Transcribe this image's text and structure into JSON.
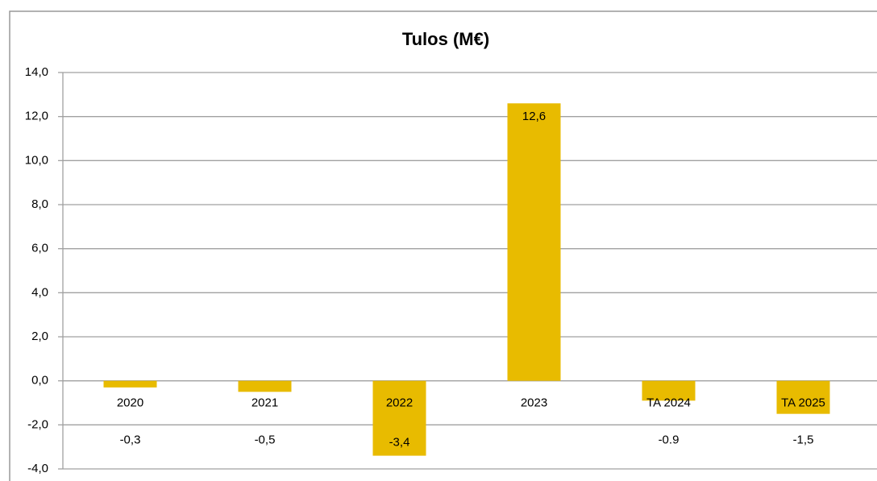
{
  "chart_data": {
    "type": "bar",
    "title": "Tulos (M€)",
    "categories": [
      "2020",
      "2021",
      "2022",
      "2023",
      "TA 2024",
      "TA 2025"
    ],
    "values": [
      -0.3,
      -0.5,
      -3.4,
      12.6,
      -0.9,
      -1.5
    ],
    "value_labels": [
      "-0,3",
      "-0,5",
      "-3,4",
      "12,6",
      "-0.9",
      "-1,5"
    ],
    "color": "#e8bb00",
    "ylim": [
      -4,
      14
    ],
    "yticks": [
      {
        "value": -4,
        "label": "-4,0"
      },
      {
        "value": -2,
        "label": "-2,0"
      },
      {
        "value": 0,
        "label": "0,0"
      },
      {
        "value": 2,
        "label": "2,0"
      },
      {
        "value": 4,
        "label": "4,0"
      },
      {
        "value": 6,
        "label": "6,0"
      },
      {
        "value": 8,
        "label": "8,0"
      },
      {
        "value": 10,
        "label": "10,0"
      },
      {
        "value": 12,
        "label": "12,0"
      },
      {
        "value": 14,
        "label": "14,0"
      }
    ],
    "grid": true
  }
}
